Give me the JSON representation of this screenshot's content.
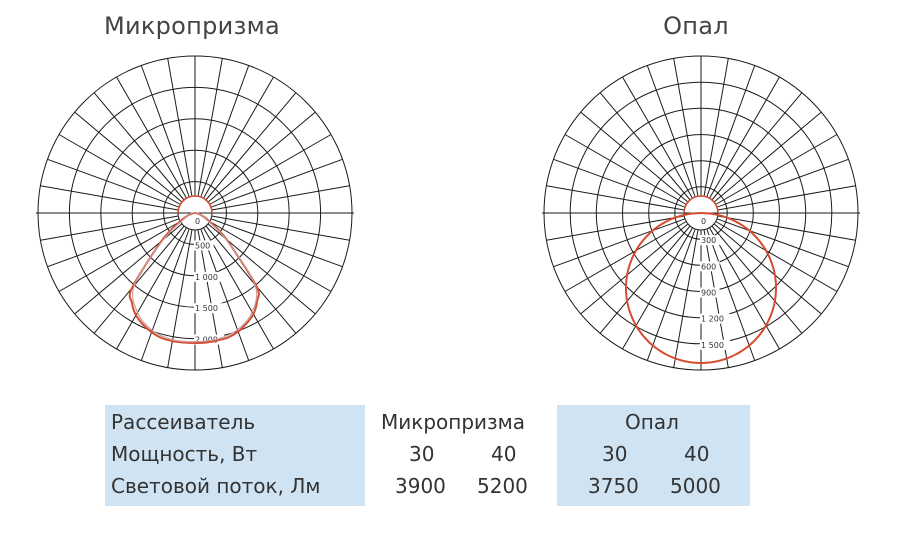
{
  "charts": {
    "left_title": "Микропризма",
    "right_title": "Опал"
  },
  "chart_data": [
    {
      "type": "polar",
      "title": "Микропризма",
      "radial_ticks": [
        "0",
        "500",
        "1 000",
        "1 500",
        "2 000"
      ],
      "radial_tick_values": [
        0,
        500,
        1000,
        1500,
        2000
      ],
      "rmax": 2500,
      "angular_step_deg": 10,
      "series": [
        {
          "color": "#d64c2f",
          "angles_deg": [
            -90,
            -80,
            -70,
            -60,
            -50,
            -40,
            -35,
            -30,
            -25,
            -20,
            -15,
            -10,
            -5,
            0,
            5,
            10,
            15,
            20,
            25,
            30,
            35,
            40,
            50,
            60,
            70,
            80,
            90
          ],
          "values": [
            0,
            40,
            120,
            280,
            700,
            1560,
            1750,
            1880,
            1960,
            2020,
            2060,
            2070,
            2070,
            2070,
            2070,
            2060,
            2050,
            2010,
            1940,
            1860,
            1720,
            1520,
            650,
            260,
            110,
            40,
            0
          ]
        },
        {
          "color": "#c8a0a0",
          "angles_deg": [
            -90,
            -70,
            -50,
            -40,
            -30,
            -20,
            -10,
            0,
            10,
            20,
            30,
            40,
            50,
            70,
            90
          ],
          "values": [
            0,
            110,
            640,
            1500,
            1830,
            1990,
            2050,
            2050,
            2040,
            1980,
            1820,
            1480,
            620,
            100,
            0
          ]
        }
      ]
    },
    {
      "type": "polar",
      "title": "Опал",
      "radial_ticks": [
        "0",
        "300",
        "600",
        "900",
        "1 200",
        "1 500"
      ],
      "radial_tick_values": [
        0,
        300,
        600,
        900,
        1200,
        1500
      ],
      "rmax": 1800,
      "angular_step_deg": 10,
      "series": [
        {
          "color": "#d64c2f",
          "shape": "cosine",
          "i0": 1720
        }
      ]
    }
  ],
  "table": {
    "header_label": "Рассеиватель",
    "power_label": "Мощность, Вт",
    "flux_label": "Световой поток, Лм",
    "group_microprism": "Микропризма",
    "group_opal": "Опал",
    "micro_power_1": "30",
    "micro_power_2": "40",
    "micro_flux_1": "3900",
    "micro_flux_2": "5200",
    "opal_power_1": "30",
    "opal_power_2": "40",
    "opal_flux_1": "3750",
    "opal_flux_2": "5000"
  },
  "colors": {
    "curve": "#d64c2f",
    "band": "#cfe3f2"
  }
}
